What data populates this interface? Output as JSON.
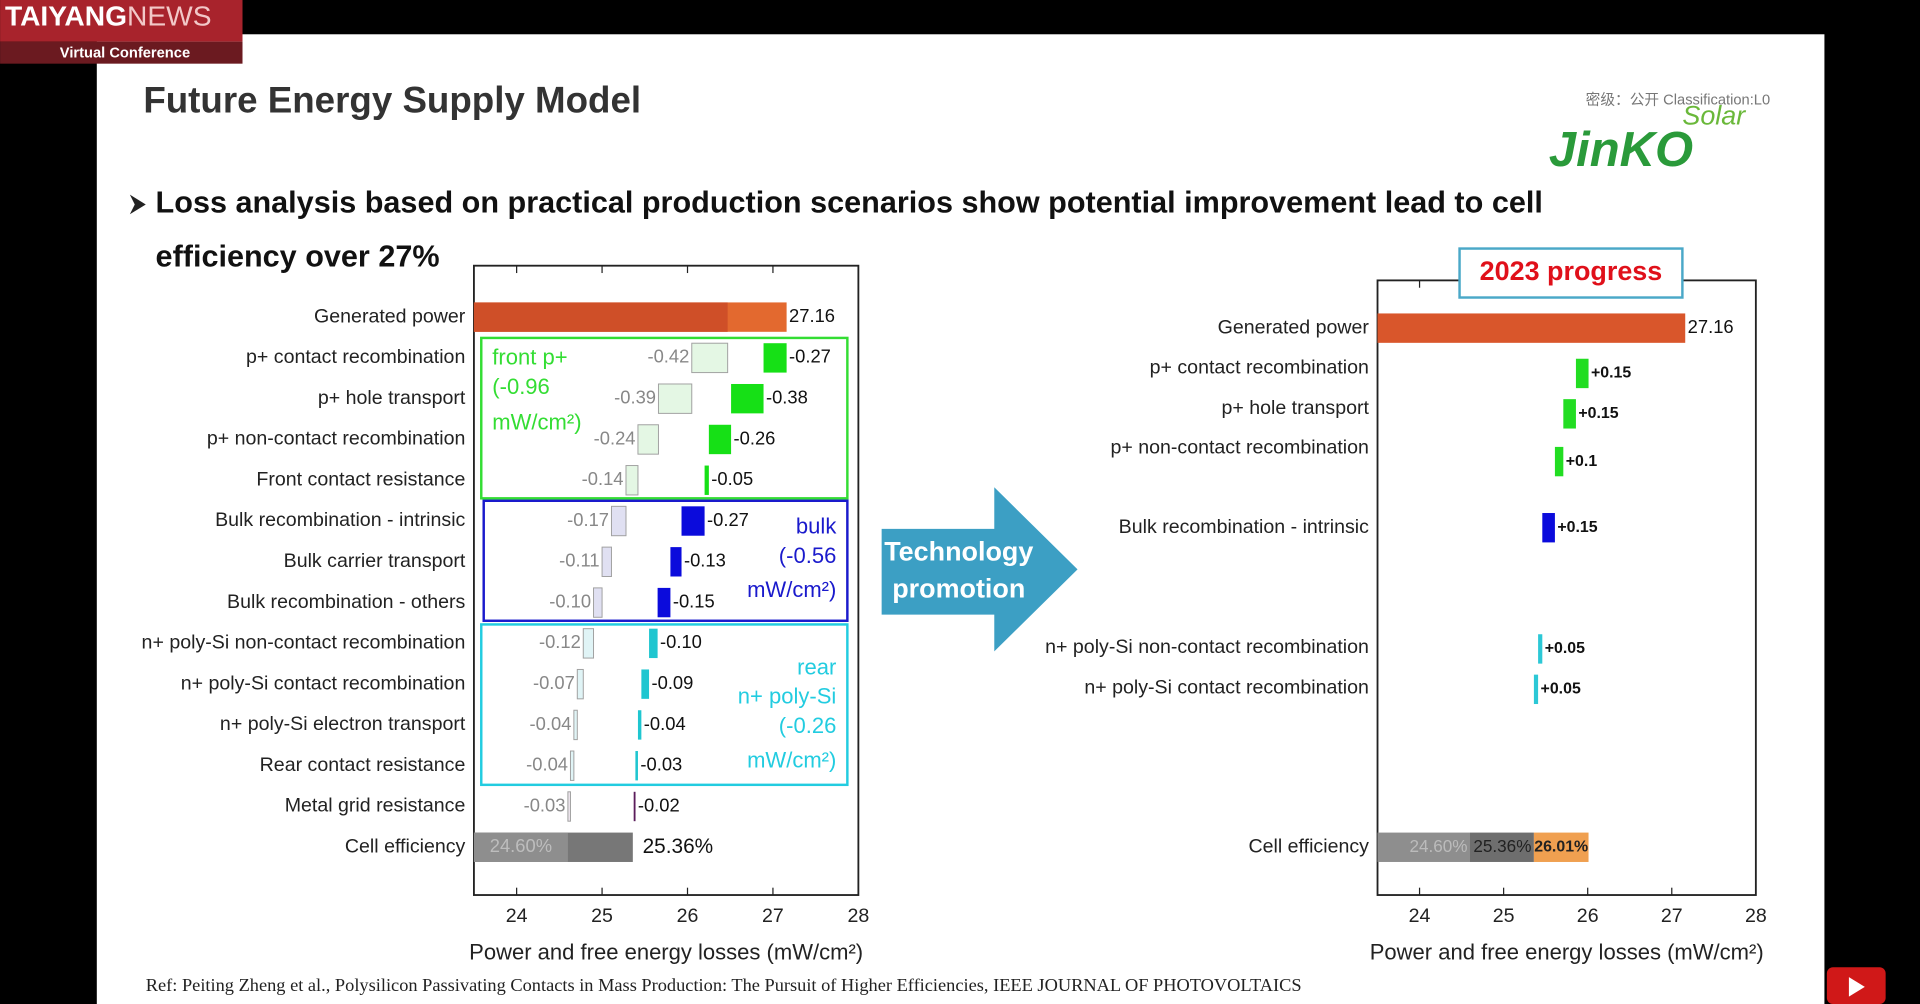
{
  "header": {
    "brand_1": "TAIYANG",
    "brand_2": "NEWS",
    "event": "Virtual Conference"
  },
  "slide": {
    "title": "Future Energy Supply Model",
    "classification": "密级：公开   Classification:L0",
    "logo_main": "JinKO",
    "logo_sub": "Solar",
    "bullet_1": "Loss analysis based on practical production scenarios show potential improvement lead to cell",
    "bullet_2": "efficiency over 27%",
    "arrow_1": "Technology",
    "arrow_2": "promotion",
    "reference": "Ref: Peiting Zheng et al., Polysilicon Passivating Contacts in Mass Production: The Pursuit of Higher Efficiencies, IEEE JOURNAL OF PHOTOVOLTAICS"
  },
  "chart_data": [
    {
      "type": "waterfall",
      "stack": "from_top",
      "categories": [
        "Generated power",
        "p+ contact recombination",
        "p+ hole transport",
        "p+ non-contact recombination",
        "Front contact resistance",
        "Bulk recombination - intrinsic",
        "Bulk carrier transport",
        "Bulk recombination - others",
        "n+ poly-Si non-contact recombination",
        "n+ poly-Si contact recombination",
        "n+ poly-Si electron transport",
        "Rear contact resistance",
        "Metal grid resistance",
        "Cell efficiency"
      ],
      "series": [
        {
          "label_side": "right",
          "values": [
            27.16,
            -0.27,
            -0.38,
            -0.26,
            -0.05,
            -0.27,
            -0.13,
            -0.15,
            -0.1,
            -0.09,
            -0.04,
            -0.03,
            -0.02,
            25.36
          ],
          "value_labels": [
            "27.16",
            "-0.27",
            "-0.38",
            "-0.26",
            "-0.05",
            "-0.27",
            "-0.13",
            "-0.15",
            "-0.10",
            "-0.09",
            "-0.04",
            "-0.03",
            "-0.02",
            "25.36%"
          ],
          "colors": [
            "#e3692f",
            "#16e016",
            "#16e016",
            "#16e016",
            "#16e016",
            "#0b0bdc",
            "#0b0bdc",
            "#0b0bdc",
            "#1fc6d0",
            "#1fc6d0",
            "#1fc6d0",
            "#1fc6d0",
            "#5b1d5b",
            "#777777"
          ]
        },
        {
          "label_side": "left",
          "outline": "#a0a0a0",
          "values": [
            26.47,
            -0.42,
            -0.39,
            -0.24,
            -0.14,
            -0.17,
            -0.11,
            -0.1,
            -0.12,
            -0.07,
            -0.04,
            -0.04,
            -0.03,
            24.6
          ],
          "value_labels": [
            null,
            "-0.42",
            "-0.39",
            "-0.24",
            "-0.14",
            "-0.17",
            "-0.11",
            "-0.10",
            "-0.12",
            "-0.07",
            "-0.04",
            "-0.04",
            "-0.03",
            "24.60%"
          ],
          "colors": [
            "#cf4f28",
            "#e4f7e4",
            "#e4f7e4",
            "#e4f7e4",
            "#e4f7e4",
            "#e0e0f2",
            "#e0e0f2",
            "#e0e0f2",
            "#e0f4f6",
            "#e0f4f6",
            "#e0f4f6",
            "#e0f4f6",
            "#ece4ec",
            "#8e8e8e"
          ]
        }
      ],
      "groups": [
        {
          "lines": [
            "front p+",
            "(-0.96",
            "mW/cm²)"
          ],
          "color": "#33dd33",
          "align": "left"
        },
        {
          "lines": [
            "bulk",
            "(-0.56",
            "mW/cm²)"
          ],
          "color": "#1a1acc",
          "align": "right"
        },
        {
          "lines": [
            "rear",
            "n+ poly-Si",
            "(-0.26",
            "mW/cm²)"
          ],
          "color": "#22cce0",
          "align": "right"
        }
      ],
      "xlabel": "Power and free energy losses (mW/cm²)",
      "xlim": [
        23.5,
        28
      ],
      "xticks": [
        24,
        25,
        26,
        27,
        28
      ]
    },
    {
      "type": "waterfall",
      "stack": "from_bottom",
      "annotation": "2023 progress",
      "categories": [
        "Generated power",
        "p+ contact recombination",
        "p+ hole transport",
        "p+ non-contact recombination",
        "Bulk recombination - intrinsic",
        "n+ poly-Si non-contact recombination",
        "n+ poly-Si contact recombination",
        "Cell efficiency"
      ],
      "cell_base": [
        {
          "value": 24.6,
          "label": "24.60%",
          "color": "#8e8e8e"
        },
        {
          "value": 25.36,
          "label": "25.36%",
          "color": "#6e6e6e"
        }
      ],
      "series": [
        {
          "label_side": "right",
          "values": [
            27.16,
            0.15,
            0.15,
            0.1,
            0.15,
            0.05,
            0.05,
            26.01
          ],
          "value_labels": [
            "27.16",
            "+0.15",
            "+0.15",
            "+0.1",
            "+0.15",
            "+0.05",
            "+0.05",
            "26.01%"
          ],
          "colors": [
            "#d9562b",
            "#22dd22",
            "#22dd22",
            "#22dd22",
            "#0b0bdc",
            "#2cc8d6",
            "#2cc8d6",
            "#f0a050"
          ]
        }
      ],
      "xlabel": "Power and free energy losses (mW/cm²)",
      "xlim": [
        23.5,
        28
      ],
      "xticks": [
        24,
        25,
        26,
        27,
        28
      ]
    }
  ]
}
